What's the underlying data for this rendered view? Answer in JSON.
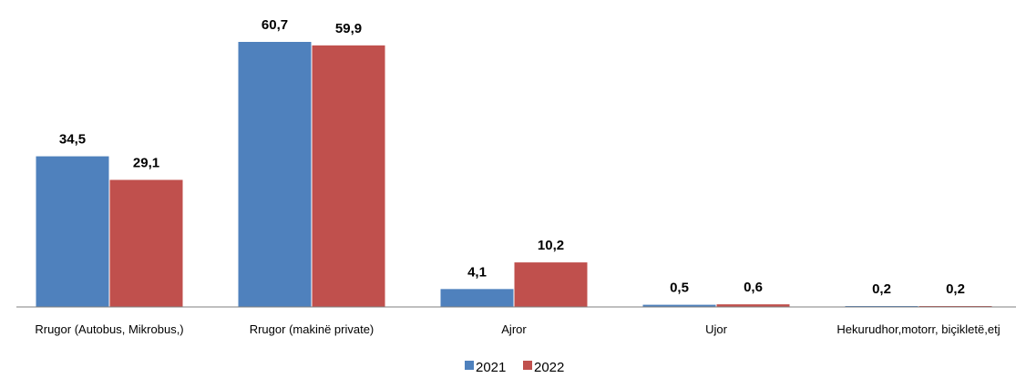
{
  "chart_data": {
    "type": "bar",
    "categories": [
      "Rrugor (Autobus, Mikrobus,)",
      "Rrugor (makinë private)",
      "Ajror",
      "Ujor",
      "Hekurudhor,motorr, biçikletë,etj"
    ],
    "series": [
      {
        "name": "2021",
        "color": "#4f81bd",
        "values": [
          34.5,
          60.7,
          4.1,
          0.5,
          0.2
        ],
        "labels": [
          "34,5",
          "60,7",
          "4,1",
          "0,5",
          "0,2"
        ]
      },
      {
        "name": "2022",
        "color": "#c0504d",
        "values": [
          29.1,
          59.9,
          10.2,
          0.6,
          0.2
        ],
        "labels": [
          "29,1",
          "59,9",
          "10,2",
          "0,6",
          "0,2"
        ]
      }
    ],
    "title": "",
    "xlabel": "",
    "ylabel": "",
    "ylim": [
      0,
      60.7
    ],
    "grid": false,
    "legend": "bottom-center",
    "axis_color": "#7f7f7f"
  }
}
